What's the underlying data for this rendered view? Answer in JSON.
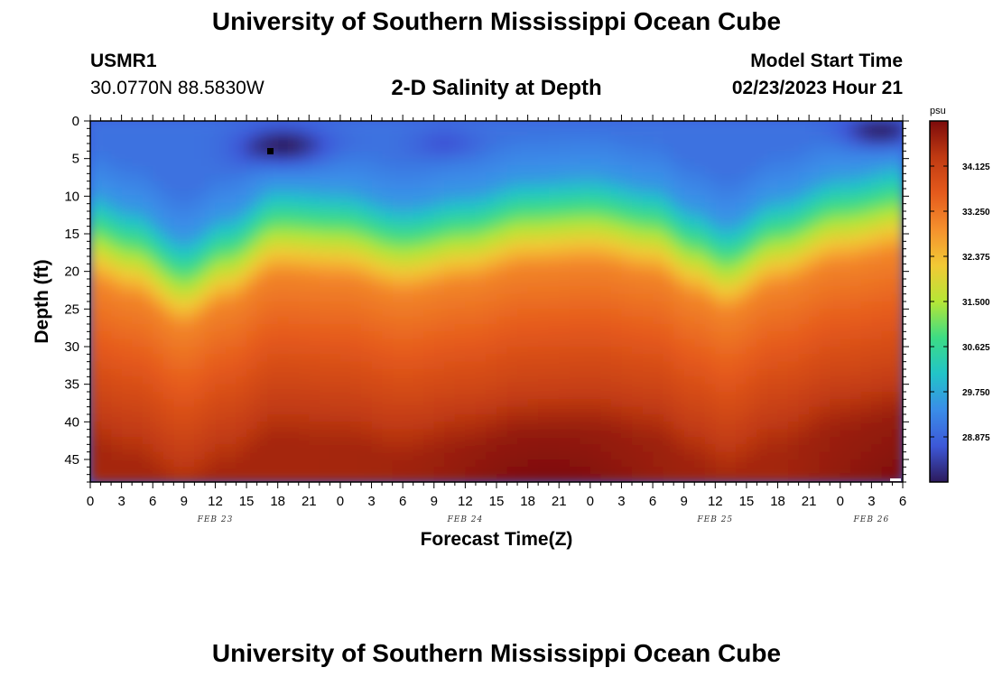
{
  "header": {
    "title": "University of Southern Mississippi Ocean Cube",
    "station_id": "USMR1",
    "coords": "30.0770N  88.5830W",
    "plot_title": "2-D Salinity at Depth",
    "model_start_label": "Model Start Time",
    "model_start_value": "02/23/2023 Hour 21"
  },
  "footer": {
    "title": "University of Southern Mississippi Ocean Cube"
  },
  "chart_data": {
    "type": "heatmap",
    "title": "2-D Salinity at Depth",
    "xlabel": "Forecast Time(Z)",
    "ylabel": "Depth (ft)",
    "x_range_hours": [
      0,
      78
    ],
    "y_range_ft": [
      0,
      48
    ],
    "x_ticks": [
      {
        "hour": 0,
        "label": "0"
      },
      {
        "hour": 3,
        "label": "3"
      },
      {
        "hour": 6,
        "label": "6"
      },
      {
        "hour": 9,
        "label": "9"
      },
      {
        "hour": 12,
        "label": "12"
      },
      {
        "hour": 15,
        "label": "15"
      },
      {
        "hour": 18,
        "label": "18"
      },
      {
        "hour": 21,
        "label": "21"
      },
      {
        "hour": 24,
        "label": "0"
      },
      {
        "hour": 27,
        "label": "3"
      },
      {
        "hour": 30,
        "label": "6"
      },
      {
        "hour": 33,
        "label": "9"
      },
      {
        "hour": 36,
        "label": "12"
      },
      {
        "hour": 39,
        "label": "15"
      },
      {
        "hour": 42,
        "label": "18"
      },
      {
        "hour": 45,
        "label": "21"
      },
      {
        "hour": 48,
        "label": "0"
      },
      {
        "hour": 51,
        "label": "3"
      },
      {
        "hour": 54,
        "label": "6"
      },
      {
        "hour": 57,
        "label": "9"
      },
      {
        "hour": 60,
        "label": "12"
      },
      {
        "hour": 63,
        "label": "15"
      },
      {
        "hour": 66,
        "label": "18"
      },
      {
        "hour": 69,
        "label": "21"
      },
      {
        "hour": 72,
        "label": "0"
      },
      {
        "hour": 75,
        "label": "3"
      },
      {
        "hour": 78,
        "label": "6"
      }
    ],
    "date_labels": [
      {
        "hour": 12,
        "label": "FEB 23"
      },
      {
        "hour": 36,
        "label": "FEB 24"
      },
      {
        "hour": 60,
        "label": "FEB 25"
      },
      {
        "hour": 75,
        "label": "FEB 26"
      }
    ],
    "y_ticks": [
      0,
      5,
      10,
      15,
      20,
      25,
      30,
      35,
      40,
      45
    ],
    "colorbar": {
      "unit": "psu",
      "range": [
        28.0,
        35.0
      ],
      "ticks": [
        "34.125",
        "33.250",
        "32.375",
        "31.500",
        "30.625",
        "29.750",
        "28.875"
      ]
    },
    "isohaline_profile": [
      {
        "hour": 0,
        "halocline_ft": 15.5
      },
      {
        "hour": 4,
        "halocline_ft": 17.5
      },
      {
        "hour": 9,
        "halocline_ft": 21.5
      },
      {
        "hour": 13,
        "halocline_ft": 18.5
      },
      {
        "hour": 18,
        "halocline_ft": 14.5
      },
      {
        "hour": 24,
        "halocline_ft": 15.0
      },
      {
        "hour": 30,
        "halocline_ft": 17.0
      },
      {
        "hour": 36,
        "halocline_ft": 15.5
      },
      {
        "hour": 42,
        "halocline_ft": 13.5
      },
      {
        "hour": 48,
        "halocline_ft": 13.0
      },
      {
        "hour": 54,
        "halocline_ft": 14.5
      },
      {
        "hour": 58,
        "halocline_ft": 17.5
      },
      {
        "hour": 61,
        "halocline_ft": 19.5
      },
      {
        "hour": 66,
        "halocline_ft": 16.0
      },
      {
        "hour": 72,
        "halocline_ft": 13.0
      },
      {
        "hour": 78,
        "halocline_ft": 11.5
      }
    ]
  },
  "colors": {
    "colormap": [
      "#2c1a5c",
      "#3d58d8",
      "#3a8de8",
      "#22c4c8",
      "#3ddc84",
      "#b6e636",
      "#f2c935",
      "#f5902d",
      "#e55a1c",
      "#c03a12",
      "#7c0b0b"
    ]
  }
}
